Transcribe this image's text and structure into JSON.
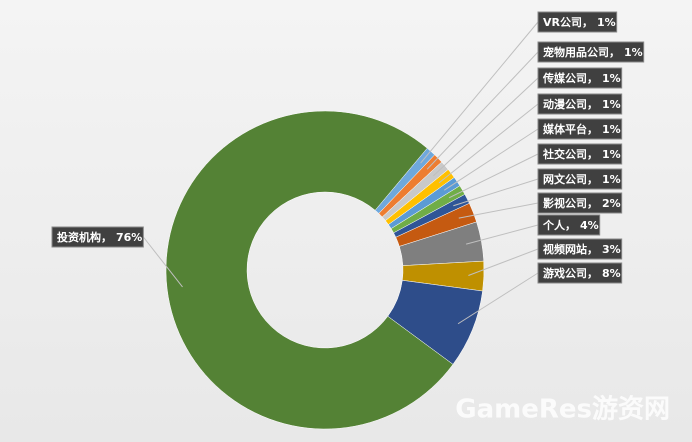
{
  "chart_data": {
    "type": "donut",
    "categories": [
      "VR公司",
      "宠物用品公司",
      "传媒公司",
      "动漫公司",
      "媒体平台",
      "社交公司",
      "网文公司",
      "影视公司",
      "个人",
      "视频网站",
      "游戏公司",
      "投资机构"
    ],
    "values": [
      1,
      1,
      1,
      1,
      1,
      1,
      1,
      2,
      4,
      3,
      8,
      76
    ],
    "value_labels": [
      "1%",
      "1%",
      "1%",
      "1%",
      "1%",
      "1%",
      "1%",
      "2%",
      "4%",
      "3%",
      "8%",
      "76%"
    ],
    "label_separator": "，",
    "colors": [
      "#6fa8dc",
      "#ed7d31",
      "#c9c9c9",
      "#ffc000",
      "#5b9bd5",
      "#70ad47",
      "#2f5597",
      "#c55a11",
      "#7f7f7f",
      "#bf9000",
      "#2e4d8a",
      "#548235"
    ],
    "watermark": "GameRes游资网"
  }
}
